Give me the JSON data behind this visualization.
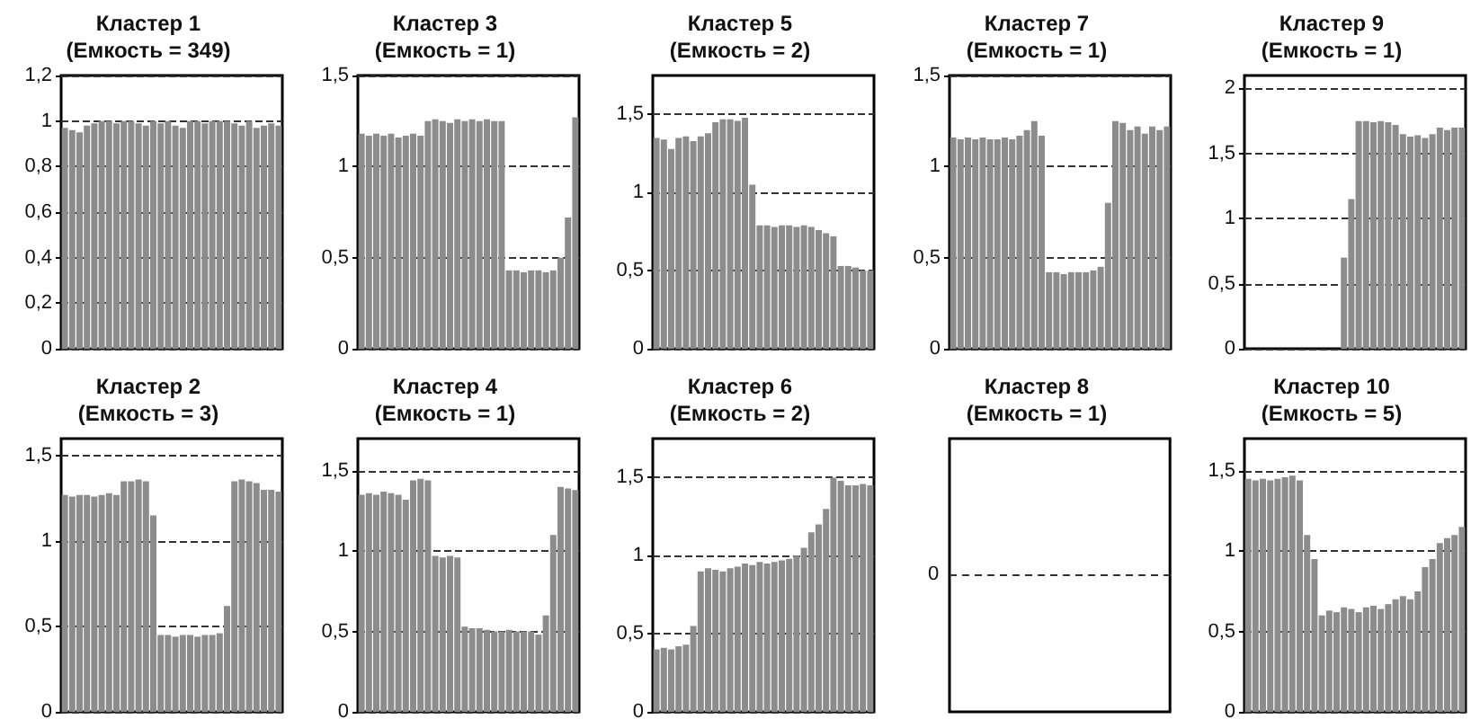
{
  "chart_data": [
    {
      "type": "bar",
      "title": "Кластер 1",
      "subtitle": "(Емкость = 349)",
      "color": "#8c8c8c",
      "grid": "y",
      "ylim": [
        0,
        1.2
      ],
      "yticks": [
        0,
        {
          "value": 0.2,
          "label": "0,2"
        },
        {
          "value": 0.4,
          "label": "0,4"
        },
        {
          "value": 0.6,
          "label": "0,6"
        },
        {
          "value": 0.8,
          "label": "0,8"
        },
        1,
        {
          "value": 1.2,
          "label": "1,2"
        }
      ],
      "categories": [
        null,
        null,
        null,
        null,
        null,
        null,
        null,
        null,
        null,
        null,
        null,
        null,
        null,
        null,
        null,
        null,
        null,
        null,
        null,
        null,
        null,
        null,
        null,
        null,
        null,
        null,
        null,
        null,
        null,
        null
      ],
      "values": [
        0.97,
        0.96,
        0.95,
        0.98,
        0.99,
        1,
        1,
        0.99,
        1,
        1,
        0.99,
        0.98,
        1,
        0.99,
        1,
        0.98,
        0.97,
        1,
        1,
        0.99,
        1,
        1,
        1,
        0.99,
        0.98,
        1,
        0.97,
        0.98,
        0.99,
        0.98
      ]
    },
    {
      "type": "bar",
      "title": "Кластер 3",
      "subtitle": "(Емкость = 1)",
      "color": "#8c8c8c",
      "grid": "y",
      "ylim": [
        0,
        1.5
      ],
      "yticks": [
        0,
        {
          "value": 0.5,
          "label": "0,5"
        },
        1,
        {
          "value": 1.5,
          "label": "1,5"
        }
      ],
      "categories": [
        null,
        null,
        null,
        null,
        null,
        null,
        null,
        null,
        null,
        null,
        null,
        null,
        null,
        null,
        null,
        null,
        null,
        null,
        null,
        null,
        null,
        null,
        null,
        null,
        null,
        null,
        null,
        null,
        null,
        null
      ],
      "values": [
        1.18,
        1.17,
        1.18,
        1.17,
        1.18,
        1.16,
        1.17,
        1.18,
        1.17,
        1.25,
        1.26,
        1.25,
        1.24,
        1.26,
        1.25,
        1.26,
        1.25,
        1.26,
        1.25,
        1.25,
        0.43,
        0.43,
        0.42,
        0.43,
        0.43,
        0.42,
        0.43,
        0.5,
        0.72,
        1.27
      ]
    },
    {
      "type": "bar",
      "title": "Кластер 5",
      "subtitle": "(Емкость = 2)",
      "color": "#8c8c8c",
      "grid": "y",
      "ylim": [
        0,
        1.75
      ],
      "yticks": [
        0,
        {
          "value": 0.5,
          "label": "0,5"
        },
        1,
        {
          "value": 1.5,
          "label": "1,5"
        }
      ],
      "categories": [
        null,
        null,
        null,
        null,
        null,
        null,
        null,
        null,
        null,
        null,
        null,
        null,
        null,
        null,
        null,
        null,
        null,
        null,
        null,
        null,
        null,
        null,
        null,
        null,
        null,
        null,
        null,
        null,
        null,
        null
      ],
      "values": [
        1.35,
        1.34,
        1.28,
        1.35,
        1.36,
        1.33,
        1.36,
        1.38,
        1.45,
        1.47,
        1.47,
        1.46,
        1.48,
        1.05,
        0.79,
        0.79,
        0.78,
        0.79,
        0.79,
        0.78,
        0.79,
        0.78,
        0.76,
        0.74,
        0.72,
        0.53,
        0.53,
        0.52,
        0.5,
        0.5
      ]
    },
    {
      "type": "bar",
      "title": "Кластер 7",
      "subtitle": "(Емкость = 1)",
      "color": "#8c8c8c",
      "grid": "y",
      "ylim": [
        0,
        1.5
      ],
      "yticks": [
        0,
        {
          "value": 0.5,
          "label": "0,5"
        },
        1,
        {
          "value": 1.5,
          "label": "1,5"
        }
      ],
      "categories": [
        null,
        null,
        null,
        null,
        null,
        null,
        null,
        null,
        null,
        null,
        null,
        null,
        null,
        null,
        null,
        null,
        null,
        null,
        null,
        null,
        null,
        null,
        null,
        null,
        null,
        null,
        null,
        null,
        null,
        null
      ],
      "values": [
        1.16,
        1.15,
        1.16,
        1.15,
        1.16,
        1.15,
        1.15,
        1.16,
        1.15,
        1.17,
        1.2,
        1.25,
        1.17,
        0.42,
        0.42,
        0.41,
        0.42,
        0.42,
        0.42,
        0.43,
        0.45,
        0.8,
        1.25,
        1.24,
        1.2,
        1.22,
        1.18,
        1.22,
        1.2,
        1.22
      ]
    },
    {
      "type": "bar",
      "title": "Кластер 9",
      "subtitle": "(Емкость = 1)",
      "color": "#8c8c8c",
      "grid": "y",
      "ylim": [
        0,
        2.1
      ],
      "yticks": [
        0,
        {
          "value": 0.5,
          "label": "0,5"
        },
        1,
        {
          "value": 1.5,
          "label": "1,5"
        },
        2
      ],
      "categories": [
        null,
        null,
        null,
        null,
        null,
        null,
        null,
        null,
        null,
        null,
        null,
        null,
        null,
        null,
        null,
        null,
        null,
        null,
        null,
        null,
        null,
        null,
        null,
        null,
        null,
        null,
        null,
        null,
        null,
        null
      ],
      "values": [
        0,
        0,
        0,
        0,
        0,
        0,
        0,
        0,
        0,
        0,
        0,
        0,
        0,
        0.7,
        1.15,
        1.75,
        1.75,
        1.74,
        1.75,
        1.74,
        1.72,
        1.65,
        1.63,
        1.64,
        1.62,
        1.65,
        1.7,
        1.68,
        1.7,
        1.7
      ]
    },
    {
      "type": "bar",
      "title": "Кластер 2",
      "subtitle": "(Емкость = 3)",
      "color": "#8c8c8c",
      "grid": "y",
      "ylim": [
        0,
        1.6
      ],
      "yticks": [
        0,
        {
          "value": 0.5,
          "label": "0,5"
        },
        1,
        {
          "value": 1.5,
          "label": "1,5"
        }
      ],
      "categories": [
        null,
        null,
        null,
        null,
        null,
        null,
        null,
        null,
        null,
        null,
        null,
        null,
        null,
        null,
        null,
        null,
        null,
        null,
        null,
        null,
        null,
        null,
        null,
        null,
        null,
        null,
        null,
        null,
        null,
        null
      ],
      "values": [
        1.27,
        1.26,
        1.27,
        1.27,
        1.26,
        1.27,
        1.28,
        1.27,
        1.35,
        1.35,
        1.36,
        1.35,
        1.15,
        0.45,
        0.45,
        0.44,
        0.45,
        0.45,
        0.44,
        0.45,
        0.45,
        0.46,
        0.62,
        1.35,
        1.36,
        1.35,
        1.34,
        1.3,
        1.3,
        1.29
      ]
    },
    {
      "type": "bar",
      "title": "Кластер 4",
      "subtitle": "(Емкость = 1)",
      "color": "#8c8c8c",
      "grid": "y",
      "ylim": [
        0,
        1.7
      ],
      "yticks": [
        0,
        {
          "value": 0.5,
          "label": "0,5"
        },
        1,
        {
          "value": 1.5,
          "label": "1,5"
        }
      ],
      "categories": [
        null,
        null,
        null,
        null,
        null,
        null,
        null,
        null,
        null,
        null,
        null,
        null,
        null,
        null,
        null,
        null,
        null,
        null,
        null,
        null,
        null,
        null,
        null,
        null,
        null,
        null,
        null,
        null,
        null,
        null
      ],
      "values": [
        1.35,
        1.36,
        1.35,
        1.37,
        1.36,
        1.35,
        1.32,
        1.44,
        1.45,
        1.44,
        0.97,
        0.96,
        0.97,
        0.96,
        0.53,
        0.52,
        0.52,
        0.51,
        0.5,
        0.5,
        0.51,
        0.5,
        0.5,
        0.5,
        0.48,
        0.6,
        1.1,
        1.4,
        1.39,
        1.38
      ]
    },
    {
      "type": "bar",
      "title": "Кластер 6",
      "subtitle": "(Емкость = 2)",
      "color": "#8c8c8c",
      "grid": "y",
      "ylim": [
        0,
        1.75
      ],
      "yticks": [
        0,
        {
          "value": 0.5,
          "label": "0,5"
        },
        1,
        {
          "value": 1.5,
          "label": "1,5"
        }
      ],
      "categories": [
        null,
        null,
        null,
        null,
        null,
        null,
        null,
        null,
        null,
        null,
        null,
        null,
        null,
        null,
        null,
        null,
        null,
        null,
        null,
        null,
        null,
        null,
        null,
        null,
        null,
        null,
        null,
        null,
        null,
        null
      ],
      "values": [
        0.4,
        0.41,
        0.4,
        0.42,
        0.43,
        0.55,
        0.9,
        0.92,
        0.91,
        0.9,
        0.92,
        0.93,
        0.95,
        0.94,
        0.96,
        0.95,
        0.96,
        0.97,
        0.98,
        1.0,
        1.05,
        1.15,
        1.2,
        1.3,
        1.5,
        1.48,
        1.45,
        1.45,
        1.46,
        1.45
      ]
    },
    {
      "type": "other",
      "title": "Кластер 8",
      "subtitle": "(Емкость = 1)",
      "annotations": [
        "0"
      ]
    },
    {
      "type": "bar",
      "title": "Кластер 10",
      "subtitle": "(Емкость = 5)",
      "color": "#8c8c8c",
      "grid": "y",
      "ylim": [
        0,
        1.7
      ],
      "yticks": [
        0,
        {
          "value": 0.5,
          "label": "0,5"
        },
        1,
        {
          "value": 1.5,
          "label": "1,5"
        }
      ],
      "categories": [
        null,
        null,
        null,
        null,
        null,
        null,
        null,
        null,
        null,
        null,
        null,
        null,
        null,
        null,
        null,
        null,
        null,
        null,
        null,
        null,
        null,
        null,
        null,
        null,
        null,
        null,
        null,
        null,
        null,
        null
      ],
      "values": [
        1.45,
        1.44,
        1.45,
        1.44,
        1.45,
        1.46,
        1.47,
        1.44,
        1.1,
        0.95,
        0.6,
        0.63,
        0.62,
        0.65,
        0.64,
        0.62,
        0.65,
        0.66,
        0.64,
        0.67,
        0.7,
        0.72,
        0.7,
        0.75,
        0.9,
        0.95,
        1.05,
        1.08,
        1.1,
        1.15
      ]
    }
  ]
}
